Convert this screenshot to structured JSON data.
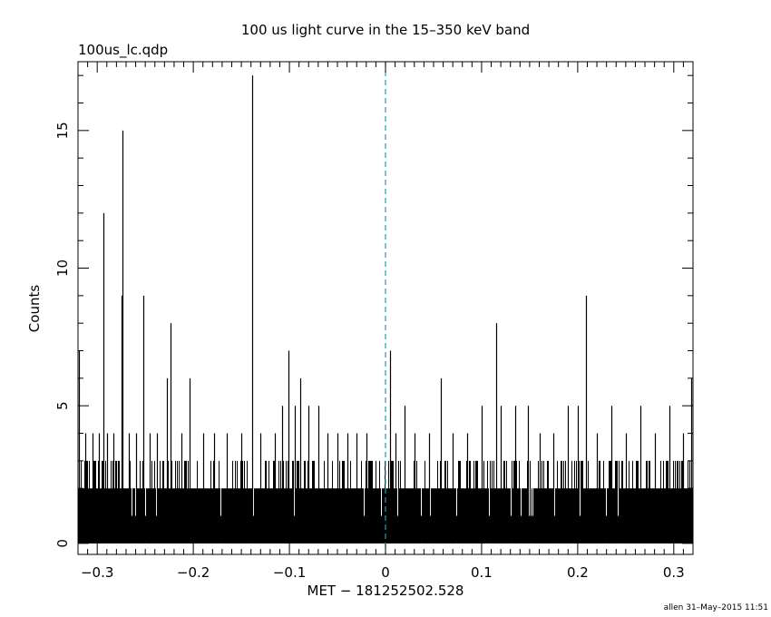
{
  "chart_data": {
    "type": "bar",
    "title": "100 us light curve in the 15–350 keV band",
    "subtitle": "100us_lc.qdp",
    "xlabel": "MET − 181252502.528",
    "ylabel": "Counts",
    "xlim": [
      -0.32,
      0.32
    ],
    "ylim": [
      -0.4,
      17.5
    ],
    "x_ticks": [
      -0.3,
      -0.2,
      -0.1,
      0,
      0.1,
      0.2,
      0.3
    ],
    "x_tick_labels": [
      "−0.3",
      "−0.2",
      "−0.1",
      "0",
      "0.1",
      "0.2",
      "0.3"
    ],
    "y_ticks": [
      0,
      5,
      10,
      15
    ],
    "y_tick_labels": [
      "0",
      "5",
      "10",
      "15"
    ],
    "bin_width": 0.0001,
    "reference_line": {
      "x": 0,
      "style": "dashed",
      "color": "#1e9bb5"
    },
    "baseline_counts": 1,
    "peaks": [
      {
        "x": -0.319,
        "y": 7
      },
      {
        "x": -0.312,
        "y": 4
      },
      {
        "x": -0.305,
        "y": 4
      },
      {
        "x": -0.298,
        "y": 4
      },
      {
        "x": -0.2935,
        "y": 12
      },
      {
        "x": -0.29,
        "y": 4
      },
      {
        "x": -0.283,
        "y": 4
      },
      {
        "x": -0.278,
        "y": 3
      },
      {
        "x": -0.2745,
        "y": 9
      },
      {
        "x": -0.2735,
        "y": 15
      },
      {
        "x": -0.267,
        "y": 4
      },
      {
        "x": -0.26,
        "y": 4
      },
      {
        "x": -0.2525,
        "y": 9
      },
      {
        "x": -0.245,
        "y": 4
      },
      {
        "x": -0.238,
        "y": 4
      },
      {
        "x": -0.2275,
        "y": 6
      },
      {
        "x": -0.2235,
        "y": 8
      },
      {
        "x": -0.212,
        "y": 4
      },
      {
        "x": -0.2035,
        "y": 6
      },
      {
        "x": -0.19,
        "y": 4
      },
      {
        "x": -0.178,
        "y": 4
      },
      {
        "x": -0.165,
        "y": 4
      },
      {
        "x": -0.15,
        "y": 4
      },
      {
        "x": -0.139,
        "y": 17
      },
      {
        "x": -0.13,
        "y": 4
      },
      {
        "x": -0.115,
        "y": 4
      },
      {
        "x": -0.108,
        "y": 5
      },
      {
        "x": -0.101,
        "y": 7
      },
      {
        "x": -0.094,
        "y": 5
      },
      {
        "x": -0.0885,
        "y": 6
      },
      {
        "x": -0.08,
        "y": 5
      },
      {
        "x": -0.07,
        "y": 5
      },
      {
        "x": -0.06,
        "y": 4
      },
      {
        "x": -0.05,
        "y": 4
      },
      {
        "x": -0.04,
        "y": 4
      },
      {
        "x": -0.03,
        "y": 4
      },
      {
        "x": -0.02,
        "y": 4
      },
      {
        "x": 0.005,
        "y": 7
      },
      {
        "x": 0.01,
        "y": 4
      },
      {
        "x": 0.02,
        "y": 5
      },
      {
        "x": 0.03,
        "y": 4
      },
      {
        "x": 0.045,
        "y": 4
      },
      {
        "x": 0.058,
        "y": 6
      },
      {
        "x": 0.07,
        "y": 4
      },
      {
        "x": 0.085,
        "y": 4
      },
      {
        "x": 0.1,
        "y": 5
      },
      {
        "x": 0.115,
        "y": 8
      },
      {
        "x": 0.12,
        "y": 5
      },
      {
        "x": 0.135,
        "y": 5
      },
      {
        "x": 0.148,
        "y": 5
      },
      {
        "x": 0.16,
        "y": 4
      },
      {
        "x": 0.175,
        "y": 4
      },
      {
        "x": 0.19,
        "y": 5
      },
      {
        "x": 0.2,
        "y": 5
      },
      {
        "x": 0.2085,
        "y": 9
      },
      {
        "x": 0.22,
        "y": 4
      },
      {
        "x": 0.235,
        "y": 5
      },
      {
        "x": 0.25,
        "y": 4
      },
      {
        "x": 0.265,
        "y": 5
      },
      {
        "x": 0.28,
        "y": 4
      },
      {
        "x": 0.295,
        "y": 5
      },
      {
        "x": 0.31,
        "y": 4
      },
      {
        "x": 0.3185,
        "y": 6
      }
    ],
    "grid": false,
    "legend": "none"
  },
  "footer": "allen 31–May–2015 11:51"
}
